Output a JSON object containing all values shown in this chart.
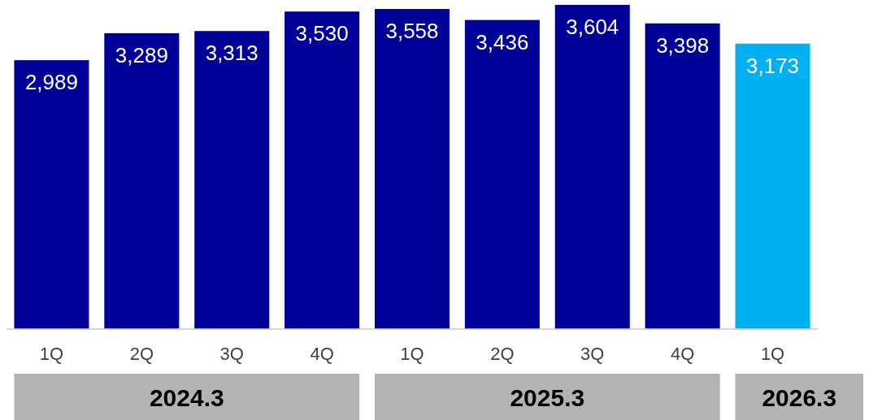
{
  "chart_data": {
    "type": "bar",
    "categories": [
      "1Q",
      "2Q",
      "3Q",
      "4Q",
      "1Q",
      "2Q",
      "3Q",
      "4Q",
      "1Q"
    ],
    "values": [
      2989,
      3289,
      3313,
      3530,
      3558,
      3436,
      3604,
      3398,
      3173
    ],
    "colors": [
      "#000099",
      "#000099",
      "#000099",
      "#000099",
      "#000099",
      "#000099",
      "#000099",
      "#000099",
      "#00b0f0"
    ],
    "value_labels": [
      "2,989",
      "3,289",
      "3,313",
      "3,530",
      "3,558",
      "3,436",
      "3,604",
      "3,398",
      "3,173"
    ],
    "annotations": [
      "2024.3",
      "2025.3",
      "2026.3"
    ]
  }
}
